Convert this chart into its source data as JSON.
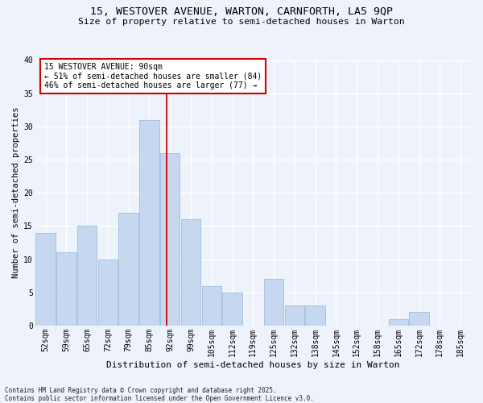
{
  "title1": "15, WESTOVER AVENUE, WARTON, CARNFORTH, LA5 9QP",
  "title2": "Size of property relative to semi-detached houses in Warton",
  "xlabel": "Distribution of semi-detached houses by size in Warton",
  "ylabel": "Number of semi-detached properties",
  "footer1": "Contains HM Land Registry data © Crown copyright and database right 2025.",
  "footer2": "Contains public sector information licensed under the Open Government Licence v3.0.",
  "categories": [
    "52sqm",
    "59sqm",
    "65sqm",
    "72sqm",
    "79sqm",
    "85sqm",
    "92sqm",
    "99sqm",
    "105sqm",
    "112sqm",
    "119sqm",
    "125sqm",
    "132sqm",
    "138sqm",
    "145sqm",
    "152sqm",
    "158sqm",
    "165sqm",
    "172sqm",
    "178sqm",
    "185sqm"
  ],
  "values": [
    14,
    11,
    15,
    10,
    17,
    31,
    26,
    16,
    6,
    5,
    0,
    7,
    3,
    3,
    0,
    0,
    0,
    1,
    2,
    0,
    0
  ],
  "bar_color": "#c5d8f0",
  "bar_edgecolor": "#a8c4e0",
  "vline_index": 6,
  "vline_color": "#cc0000",
  "annotation_title": "15 WESTOVER AVENUE: 90sqm",
  "annotation_line1": "← 51% of semi-detached houses are smaller (84)",
  "annotation_line2": "46% of semi-detached houses are larger (77) →",
  "annotation_box_facecolor": "#ffffff",
  "annotation_box_edgecolor": "#cc0000",
  "ylim": [
    0,
    40
  ],
  "yticks": [
    0,
    5,
    10,
    15,
    20,
    25,
    30,
    35,
    40
  ],
  "bg_color": "#eef2fb",
  "grid_color": "#ffffff",
  "title1_fontsize": 9.5,
  "title2_fontsize": 8.2,
  "ylabel_fontsize": 7.5,
  "xlabel_fontsize": 8,
  "tick_fontsize": 7,
  "ann_fontsize": 7,
  "footer_fontsize": 5.5
}
